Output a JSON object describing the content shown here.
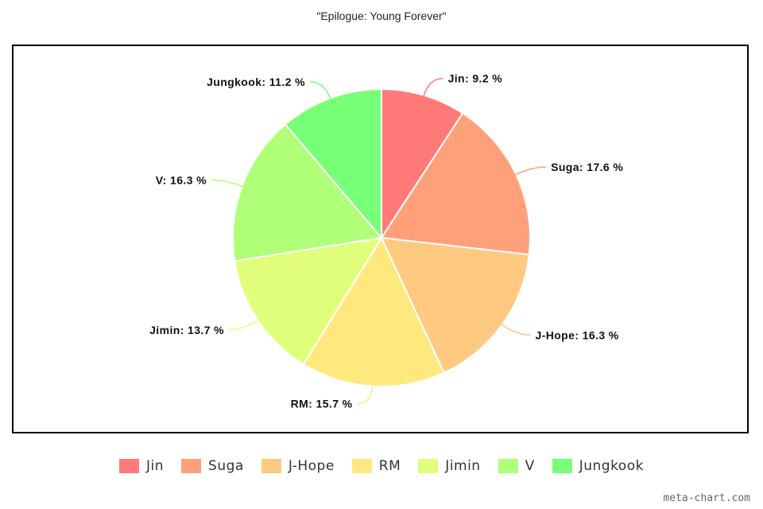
{
  "chart_data": {
    "type": "pie",
    "title": "\"Epilogue: Young Forever\"",
    "slices": [
      {
        "name": "Jin",
        "value": 9.2,
        "label": "Jin: 9.2 %",
        "color": "#ff7a78"
      },
      {
        "name": "Suga",
        "value": 17.6,
        "label": "Suga: 17.6 %",
        "color": "#ffa07a"
      },
      {
        "name": "J-Hope",
        "value": 16.3,
        "label": "J-Hope: 16.3 %",
        "color": "#ffc97f"
      },
      {
        "name": "RM",
        "value": 15.7,
        "label": "RM: 15.7 %",
        "color": "#ffe97f"
      },
      {
        "name": "Jimin",
        "value": 13.7,
        "label": "Jimin: 13.7 %",
        "color": "#e0ff7a"
      },
      {
        "name": "V",
        "value": 16.3,
        "label": "V: 16.3 %",
        "color": "#b0ff78"
      },
      {
        "name": "Jungkook",
        "value": 11.2,
        "label": "Jungkook: 11.2 %",
        "color": "#78ff78"
      }
    ],
    "legend_position": "bottom"
  },
  "watermark": "meta-chart.com"
}
